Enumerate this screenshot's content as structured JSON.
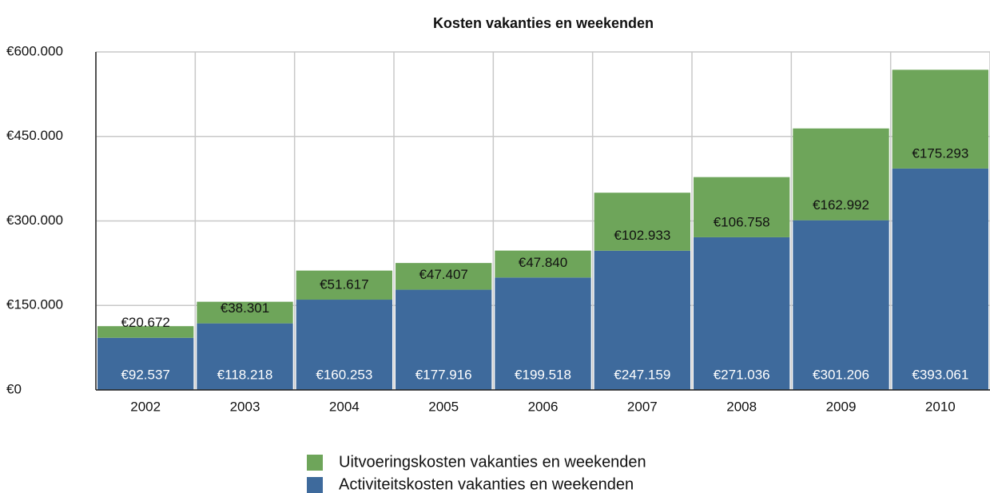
{
  "chart_data": {
    "type": "stacked_bar",
    "title": "Kosten vakanties en weekenden",
    "categories": [
      "2002",
      "2003",
      "2004",
      "2005",
      "2006",
      "2007",
      "2008",
      "2009",
      "2010"
    ],
    "series": [
      {
        "name": "Activiteitskosten vakanties en weekenden",
        "color": "#3e6a9c",
        "values": [
          92537,
          118218,
          160253,
          177916,
          199518,
          247159,
          271036,
          301206,
          393061
        ],
        "value_labels": [
          "€92.537",
          "€118.218",
          "€160.253",
          "€177.916",
          "€199.518",
          "€247.159",
          "€271.036",
          "€301.206",
          "€393.061"
        ]
      },
      {
        "name": "Uitvoeringskosten vakanties en weekenden",
        "color": "#6ea55a",
        "values": [
          20672,
          38301,
          51617,
          47407,
          47840,
          102933,
          106758,
          162992,
          175293
        ],
        "value_labels": [
          "€20.672",
          "€38.301",
          "€51.617",
          "€47.407",
          "€47.840",
          "€102.933",
          "€106.758",
          "€162.992",
          "€175.293"
        ]
      }
    ],
    "ylim": [
      0,
      600000
    ],
    "yticks": [
      {
        "value": 0,
        "label": "€0"
      },
      {
        "value": 150000,
        "label": "€150.000"
      },
      {
        "value": 300000,
        "label": "€300.000"
      },
      {
        "value": 450000,
        "label": "€450.000"
      },
      {
        "value": 600000,
        "label": "€600.000"
      }
    ],
    "grid": true
  }
}
